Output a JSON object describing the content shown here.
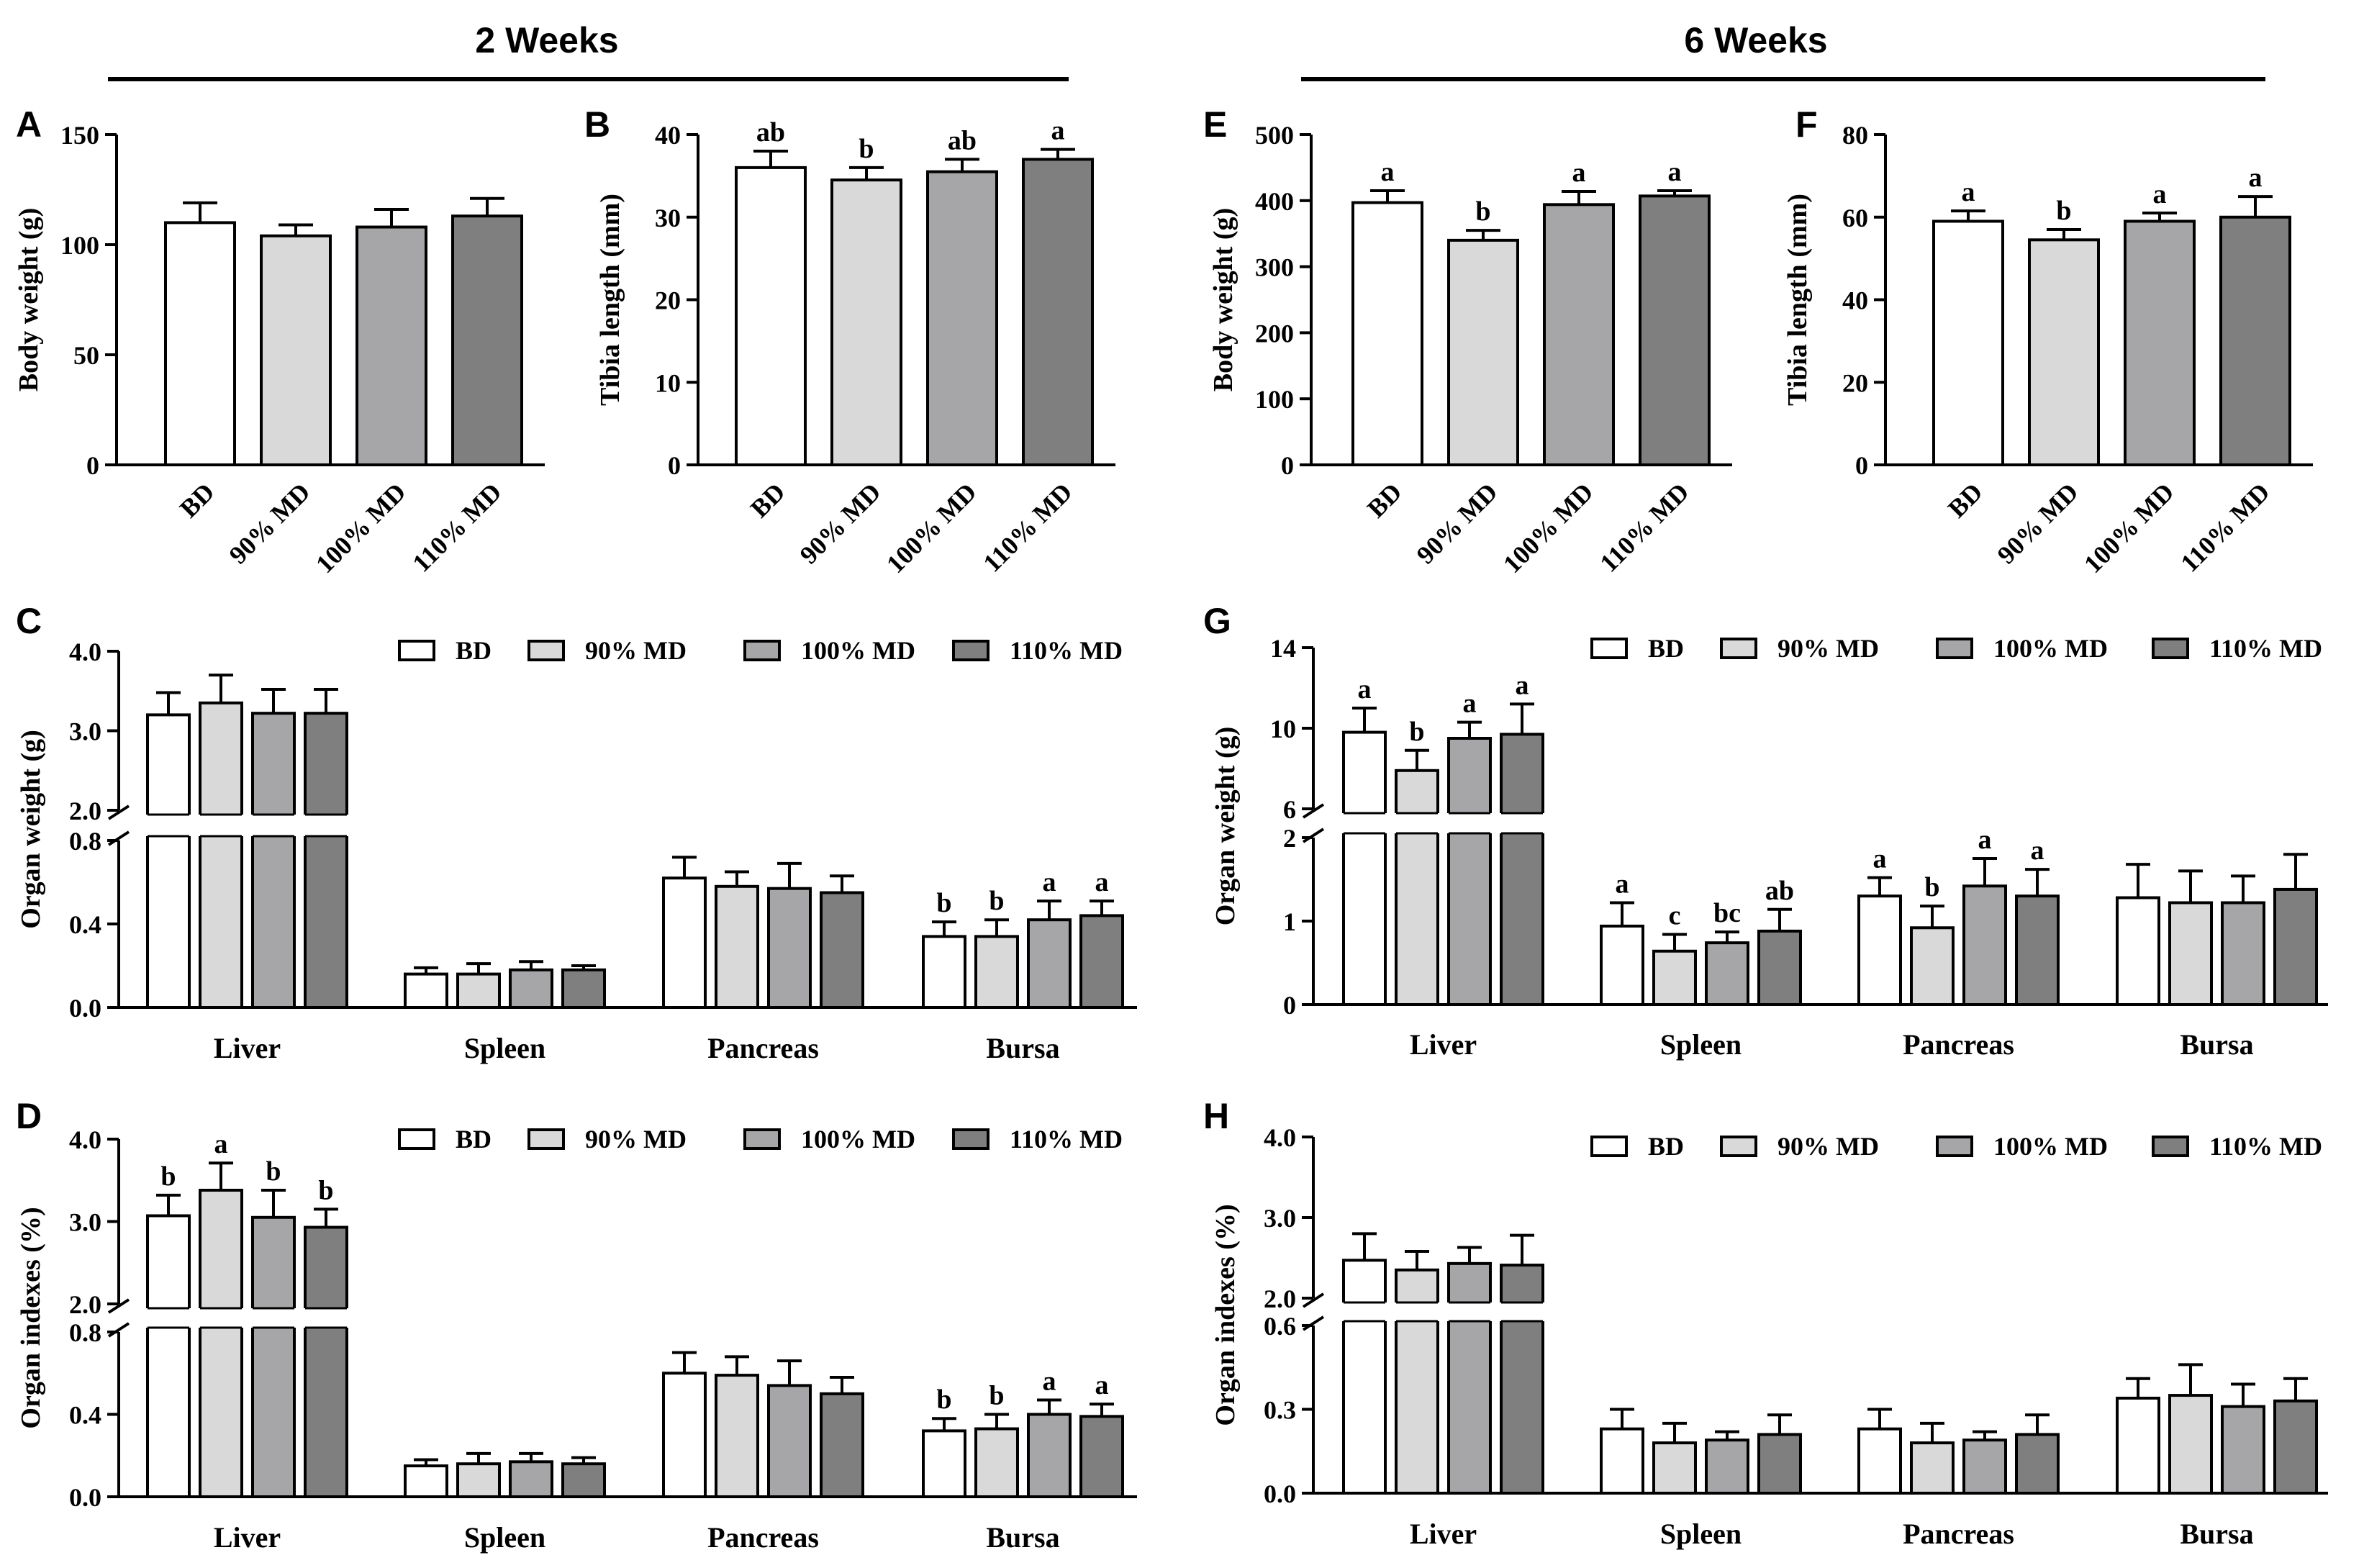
{
  "figure": {
    "group_titles": [
      "2 Weeks",
      "6 Weeks"
    ],
    "legend_labels": [
      "BD",
      "90% MD",
      "100% MD",
      "110% MD"
    ],
    "colors": {
      "BD": "#ffffff",
      "90% MD": "#d9d9d9",
      "100% MD": "#a6a6a8",
      "110% MD": "#7f7f7f",
      "edge": "#000000"
    }
  },
  "chart_data": [
    {
      "panel": "A",
      "type": "bar",
      "period": "2 Weeks",
      "categories": [
        "BD",
        "90% MD",
        "100% MD",
        "110% MD"
      ],
      "values": [
        110,
        104,
        108,
        113
      ],
      "errors": [
        9,
        5,
        8,
        8
      ],
      "letters": [
        "",
        "",
        "",
        ""
      ],
      "ylabel": "Body weight (g)",
      "ylim": [
        0,
        150
      ],
      "yticks": [
        0,
        50,
        100,
        150
      ]
    },
    {
      "panel": "B",
      "type": "bar",
      "period": "2 Weeks",
      "categories": [
        "BD",
        "90% MD",
        "100% MD",
        "110% MD"
      ],
      "values": [
        36,
        34.5,
        35.5,
        37
      ],
      "errors": [
        2,
        1.5,
        1.5,
        1.2
      ],
      "letters": [
        "ab",
        "b",
        "ab",
        "a"
      ],
      "ylabel": "Tibia length (mm)",
      "ylim": [
        0,
        40
      ],
      "yticks": [
        0,
        10,
        20,
        30,
        40
      ]
    },
    {
      "panel": "E",
      "type": "bar",
      "period": "6 Weeks",
      "categories": [
        "BD",
        "90% MD",
        "100% MD",
        "110% MD"
      ],
      "values": [
        397,
        340,
        394,
        407
      ],
      "errors": [
        18,
        15,
        20,
        8
      ],
      "letters": [
        "a",
        "b",
        "a",
        "a"
      ],
      "ylabel": "Body weight (g)",
      "ylim": [
        0,
        500
      ],
      "yticks": [
        0,
        100,
        200,
        300,
        400,
        500
      ]
    },
    {
      "panel": "F",
      "type": "bar",
      "period": "6 Weeks",
      "categories": [
        "BD",
        "90% MD",
        "100% MD",
        "110% MD"
      ],
      "values": [
        59,
        54.5,
        59,
        60
      ],
      "errors": [
        2.5,
        2.5,
        2,
        5
      ],
      "letters": [
        "a",
        "b",
        "a",
        "a"
      ],
      "ylabel": "Tibia length (mm)",
      "ylim": [
        0,
        80
      ],
      "yticks": [
        0,
        20,
        40,
        60,
        80
      ]
    },
    {
      "panel": "C",
      "type": "bar",
      "period": "2 Weeks",
      "categories": [
        "Liver",
        "Spleen",
        "Pancreas",
        "Bursa"
      ],
      "series": [
        {
          "name": "BD",
          "values": [
            3.2,
            0.16,
            0.62,
            0.34
          ],
          "errors": [
            0.28,
            0.03,
            0.1,
            0.07
          ],
          "letters": [
            "",
            "",
            "",
            "b"
          ]
        },
        {
          "name": "90% MD",
          "values": [
            3.35,
            0.16,
            0.58,
            0.34
          ],
          "errors": [
            0.35,
            0.05,
            0.07,
            0.08
          ],
          "letters": [
            "",
            "",
            "",
            "b"
          ]
        },
        {
          "name": "100% MD",
          "values": [
            3.22,
            0.18,
            0.57,
            0.42
          ],
          "errors": [
            0.3,
            0.04,
            0.12,
            0.09
          ],
          "letters": [
            "",
            "",
            "",
            "a"
          ]
        },
        {
          "name": "110% MD",
          "values": [
            3.22,
            0.18,
            0.55,
            0.44
          ],
          "errors": [
            0.3,
            0.02,
            0.08,
            0.07
          ],
          "letters": [
            "",
            "",
            "",
            "a"
          ]
        }
      ],
      "ylabel": "Organ weight (g)",
      "axis_break": {
        "lower_ylim": [
          0,
          0.8
        ],
        "lower_ticks": [
          0.0,
          0.4,
          0.8
        ],
        "upper_ylim": [
          2,
          4
        ],
        "upper_ticks": [
          2,
          3,
          4
        ]
      }
    },
    {
      "panel": "D",
      "type": "bar",
      "period": "2 Weeks",
      "categories": [
        "Liver",
        "Spleen",
        "Pancreas",
        "Bursa"
      ],
      "series": [
        {
          "name": "BD",
          "values": [
            3.07,
            0.15,
            0.6,
            0.32
          ],
          "errors": [
            0.25,
            0.03,
            0.1,
            0.06
          ],
          "letters": [
            "b",
            "",
            "",
            "b"
          ]
        },
        {
          "name": "90% MD",
          "values": [
            3.38,
            0.16,
            0.59,
            0.33
          ],
          "errors": [
            0.33,
            0.05,
            0.09,
            0.07
          ],
          "letters": [
            "a",
            "",
            "",
            "b"
          ]
        },
        {
          "name": "100% MD",
          "values": [
            3.05,
            0.17,
            0.54,
            0.4
          ],
          "errors": [
            0.33,
            0.04,
            0.12,
            0.07
          ],
          "letters": [
            "b",
            "",
            "",
            "a"
          ]
        },
        {
          "name": "110% MD",
          "values": [
            2.93,
            0.16,
            0.5,
            0.39
          ],
          "errors": [
            0.22,
            0.03,
            0.08,
            0.06
          ],
          "letters": [
            "b",
            "",
            "",
            "a"
          ]
        }
      ],
      "ylabel": "Organ indexes (%)",
      "axis_break": {
        "lower_ylim": [
          0,
          0.8
        ],
        "lower_ticks": [
          0.0,
          0.4,
          0.8
        ],
        "upper_ylim": [
          2,
          4
        ],
        "upper_ticks": [
          2,
          3,
          4
        ]
      }
    },
    {
      "panel": "G",
      "type": "bar",
      "period": "6 Weeks",
      "categories": [
        "Liver",
        "Spleen",
        "Pancreas",
        "Bursa"
      ],
      "series": [
        {
          "name": "BD",
          "values": [
            9.8,
            0.94,
            1.3,
            1.28
          ],
          "errors": [
            1.2,
            0.28,
            0.22,
            0.4
          ],
          "letters": [
            "a",
            "a",
            "a",
            ""
          ]
        },
        {
          "name": "90% MD",
          "values": [
            7.9,
            0.64,
            0.92,
            1.22
          ],
          "errors": [
            1.0,
            0.2,
            0.26,
            0.38
          ],
          "letters": [
            "b",
            "c",
            "b",
            ""
          ]
        },
        {
          "name": "100% MD",
          "values": [
            9.5,
            0.74,
            1.42,
            1.22
          ],
          "errors": [
            0.8,
            0.13,
            0.33,
            0.32
          ],
          "letters": [
            "a",
            "bc",
            "a",
            ""
          ]
        },
        {
          "name": "110% MD",
          "values": [
            9.7,
            0.88,
            1.3,
            1.38
          ],
          "errors": [
            1.5,
            0.26,
            0.32,
            0.42
          ],
          "letters": [
            "a",
            "ab",
            "a",
            ""
          ]
        }
      ],
      "ylabel": "Organ weight (g)",
      "axis_break": {
        "lower_ylim": [
          0,
          2
        ],
        "lower_ticks": [
          0,
          1,
          2
        ],
        "upper_ylim": [
          6,
          14
        ],
        "upper_ticks": [
          6,
          10,
          14
        ]
      }
    },
    {
      "panel": "H",
      "type": "bar",
      "period": "6 Weeks",
      "categories": [
        "Liver",
        "Spleen",
        "Pancreas",
        "Bursa"
      ],
      "series": [
        {
          "name": "BD",
          "values": [
            2.47,
            0.23,
            0.23,
            0.34
          ],
          "errors": [
            0.33,
            0.07,
            0.07,
            0.07
          ],
          "letters": [
            "",
            "",
            "",
            ""
          ]
        },
        {
          "name": "90% MD",
          "values": [
            2.35,
            0.18,
            0.18,
            0.35
          ],
          "errors": [
            0.23,
            0.07,
            0.07,
            0.11
          ],
          "letters": [
            "",
            "",
            "",
            ""
          ]
        },
        {
          "name": "100% MD",
          "values": [
            2.43,
            0.19,
            0.19,
            0.31
          ],
          "errors": [
            0.2,
            0.03,
            0.03,
            0.08
          ],
          "letters": [
            "",
            "",
            "",
            ""
          ]
        },
        {
          "name": "110% MD",
          "values": [
            2.41,
            0.21,
            0.21,
            0.33
          ],
          "errors": [
            0.37,
            0.07,
            0.07,
            0.08
          ],
          "letters": [
            "",
            "",
            "",
            ""
          ]
        }
      ],
      "ylabel": "Organ indexes (%)",
      "axis_break": {
        "lower_ylim": [
          0,
          0.6
        ],
        "lower_ticks": [
          0.0,
          0.3,
          0.6
        ],
        "upper_ylim": [
          2,
          4
        ],
        "upper_ticks": [
          2,
          3,
          4
        ]
      }
    }
  ]
}
